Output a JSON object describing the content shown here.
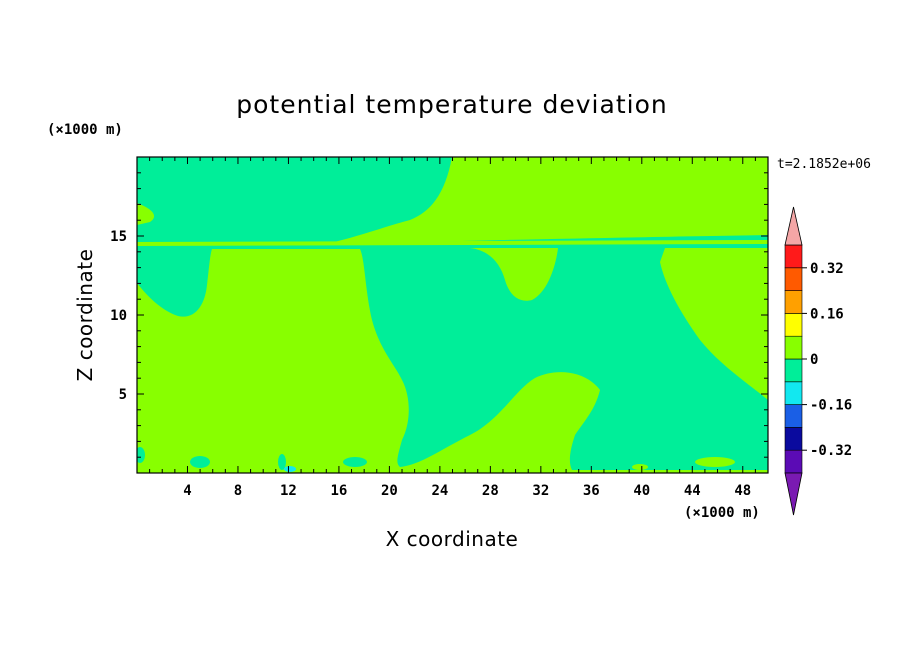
{
  "chart_data": {
    "type": "heatmap",
    "title": "potential temperature deviation",
    "xlabel": "X coordinate",
    "ylabel": "Z coordinate",
    "x_unit": "(×1000 m)",
    "y_unit": "(×1000 m)",
    "time_label": "t=2.1852e+06",
    "xlim": [
      0,
      50
    ],
    "ylim": [
      0,
      20
    ],
    "x_ticks": [
      4,
      8,
      12,
      16,
      20,
      24,
      28,
      32,
      36,
      40,
      44,
      48
    ],
    "y_ticks": [
      5,
      10,
      15
    ],
    "colorbar": {
      "levels": [
        -0.4,
        -0.32,
        -0.24,
        -0.16,
        -0.08,
        0,
        0.08,
        0.16,
        0.24,
        0.32,
        0.4
      ],
      "labels": [
        "-0.32",
        "-0.16",
        "0",
        "0.16",
        "0.32"
      ],
      "label_values": [
        -0.32,
        -0.16,
        0,
        0.16,
        0.32
      ],
      "colors": [
        "#5b0bb5",
        "#0a0a9e",
        "#1a5fe6",
        "#12e8f0",
        "#00ee99",
        "#88ff00",
        "#ffff00",
        "#ffa000",
        "#ff5a00",
        "#ff1a1a"
      ],
      "under_color": "#7a1ab2",
      "over_color": "#f4a6a6"
    },
    "regions": [
      {
        "level": "0 to 0.08",
        "color": "#88ff00",
        "description": "positive deviation areas"
      },
      {
        "level": "-0.08 to 0",
        "color": "#00ee99",
        "description": "negative deviation areas"
      }
    ]
  }
}
